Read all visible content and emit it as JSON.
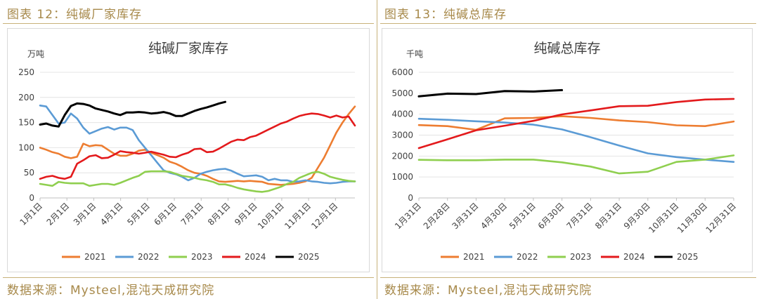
{
  "left_panel": {
    "heading": "图表 12：纯碱厂家库存",
    "source": "数据来源：Mysteel,混沌天成研究院"
  },
  "right_panel": {
    "heading": "图表 13：纯碱总库存",
    "source": "数据来源：Mysteel,混沌天成研究院"
  },
  "chart_data": [
    {
      "type": "line",
      "title": "纯碱厂家库存",
      "ylabel": "万吨",
      "xlabel": "",
      "ylim": [
        0,
        250
      ],
      "yticks": [
        0,
        50,
        100,
        150,
        200,
        250
      ],
      "x_ticks": [
        "1月1日",
        "2月1日",
        "3月1日",
        "4月1日",
        "5月1日",
        "6月1日",
        "7月1日",
        "8月1日",
        "9月1日",
        "10月1日",
        "11月1日",
        "12月1日"
      ],
      "x_domain_weeks": 52,
      "grid": true,
      "legend": "bottom",
      "series": [
        {
          "name": "2021",
          "color": "#ed7d31",
          "x": [
            0,
            1,
            2,
            3,
            4,
            5,
            6,
            7,
            8,
            9,
            10,
            11,
            12,
            13,
            14,
            15,
            16,
            17,
            18,
            19,
            20,
            21,
            22,
            23,
            24,
            25,
            26,
            27,
            28,
            29,
            30,
            31,
            32,
            33,
            34,
            35,
            36,
            37,
            38,
            39,
            40,
            41,
            42,
            43,
            44,
            45,
            46,
            47,
            48,
            49,
            50,
            51
          ],
          "values": [
            100,
            96,
            91,
            88,
            82,
            79,
            82,
            108,
            103,
            105,
            104,
            96,
            88,
            84,
            84,
            88,
            94,
            96,
            90,
            85,
            80,
            72,
            68,
            62,
            55,
            50,
            48,
            44,
            38,
            33,
            32,
            33,
            34,
            33,
            34,
            33,
            32,
            28,
            27,
            26,
            27,
            28,
            30,
            33,
            40,
            60,
            80,
            105,
            130,
            150,
            167,
            182
          ]
        },
        {
          "name": "2022",
          "color": "#5b9bd5",
          "x": [
            0,
            1,
            2,
            3,
            4,
            5,
            6,
            7,
            8,
            9,
            10,
            11,
            12,
            13,
            14,
            15,
            16,
            17,
            18,
            19,
            20,
            21,
            22,
            23,
            24,
            25,
            26,
            27,
            28,
            29,
            30,
            31,
            32,
            33,
            34,
            35,
            36,
            37,
            38,
            39,
            40,
            41,
            42,
            43,
            44,
            45,
            46,
            47,
            48,
            49,
            50,
            51
          ],
          "values": [
            184,
            182,
            165,
            148,
            150,
            168,
            158,
            140,
            128,
            133,
            138,
            141,
            136,
            140,
            140,
            135,
            115,
            100,
            85,
            70,
            55,
            50,
            47,
            42,
            35,
            40,
            48,
            52,
            55,
            57,
            58,
            54,
            48,
            43,
            44,
            45,
            42,
            35,
            38,
            35,
            35,
            32,
            33,
            35,
            33,
            32,
            30,
            29,
            30,
            32,
            33,
            33
          ]
        },
        {
          "name": "2023",
          "color": "#8fcf4f",
          "x": [
            0,
            1,
            2,
            3,
            4,
            5,
            6,
            7,
            8,
            9,
            10,
            11,
            12,
            13,
            14,
            15,
            16,
            17,
            18,
            19,
            20,
            21,
            22,
            23,
            24,
            25,
            26,
            27,
            28,
            29,
            30,
            31,
            32,
            33,
            34,
            35,
            36,
            37,
            38,
            39,
            40,
            41,
            42,
            43,
            44,
            45,
            46,
            47,
            48,
            49,
            50,
            51
          ],
          "values": [
            28,
            26,
            24,
            32,
            30,
            29,
            29,
            29,
            24,
            26,
            28,
            28,
            26,
            30,
            35,
            40,
            44,
            52,
            53,
            53,
            53,
            52,
            48,
            44,
            42,
            40,
            37,
            35,
            32,
            27,
            27,
            24,
            20,
            17,
            15,
            13,
            12,
            14,
            18,
            22,
            28,
            32,
            40,
            45,
            50,
            52,
            48,
            42,
            39,
            36,
            34,
            33
          ]
        },
        {
          "name": "2024",
          "color": "#e31a1c",
          "x": [
            0,
            1,
            2,
            3,
            4,
            5,
            6,
            7,
            8,
            9,
            10,
            11,
            12,
            13,
            14,
            15,
            16,
            17,
            18,
            19,
            20,
            21,
            22,
            23,
            24,
            25,
            26,
            27,
            28,
            29,
            30,
            31,
            32,
            33,
            34,
            35,
            36,
            37,
            38,
            39,
            40,
            41,
            42,
            43,
            44,
            45,
            46,
            47,
            48,
            49,
            50,
            51
          ],
          "values": [
            38,
            42,
            44,
            40,
            38,
            42,
            68,
            75,
            83,
            85,
            79,
            80,
            86,
            93,
            91,
            90,
            88,
            90,
            92,
            89,
            86,
            82,
            81,
            86,
            90,
            97,
            98,
            91,
            92,
            98,
            105,
            112,
            116,
            115,
            121,
            124,
            130,
            136,
            142,
            148,
            152,
            158,
            163,
            166,
            168,
            167,
            164,
            160,
            164,
            160,
            162,
            144
          ]
        },
        {
          "name": "2025",
          "color": "#000000",
          "x": [
            0,
            1,
            2,
            3,
            4,
            5,
            6,
            7,
            8,
            9,
            10,
            11,
            12,
            13,
            14,
            15,
            16,
            17,
            18,
            19,
            20,
            21,
            22,
            23,
            24,
            25,
            26,
            27,
            28,
            29,
            30
          ],
          "values": [
            146,
            148,
            144,
            142,
            165,
            183,
            188,
            187,
            184,
            178,
            175,
            172,
            168,
            165,
            170,
            170,
            171,
            170,
            168,
            169,
            171,
            168,
            163,
            163,
            168,
            173,
            177,
            180,
            184,
            188,
            191
          ]
        }
      ]
    },
    {
      "type": "line",
      "title": "纯碱总库存",
      "ylabel": "千吨",
      "xlabel": "",
      "ylim": [
        0,
        6000
      ],
      "yticks": [
        0,
        1000,
        2000,
        3000,
        4000,
        5000,
        6000
      ],
      "x_ticks": [
        "1月31日",
        "2月28日",
        "3月31日",
        "4月30日",
        "5月31日",
        "6月30日",
        "7月31日",
        "8月31日",
        "9月30日",
        "10月31日",
        "11月30日",
        "12月31日"
      ],
      "grid": true,
      "legend": "bottom",
      "series": [
        {
          "name": "2021",
          "color": "#ed7d31",
          "x": [
            0,
            1,
            2,
            3,
            4,
            5,
            6,
            7,
            8,
            9,
            10,
            11
          ],
          "values": [
            3480,
            3430,
            3250,
            3800,
            3820,
            3900,
            3820,
            3700,
            3620,
            3470,
            3430,
            3650
          ]
        },
        {
          "name": "2022",
          "color": "#5b9bd5",
          "x": [
            0,
            1,
            2,
            3,
            4,
            5,
            6,
            7,
            8,
            9,
            10,
            11
          ],
          "values": [
            3780,
            3730,
            3660,
            3600,
            3500,
            3270,
            2900,
            2500,
            2130,
            1950,
            1830,
            1720
          ]
        },
        {
          "name": "2023",
          "color": "#8fcf4f",
          "x": [
            0,
            1,
            2,
            3,
            4,
            5,
            6,
            7,
            8,
            9,
            10,
            11
          ],
          "values": [
            1820,
            1800,
            1800,
            1830,
            1830,
            1700,
            1500,
            1170,
            1250,
            1720,
            1830,
            2030
          ]
        },
        {
          "name": "2024",
          "color": "#e31a1c",
          "x": [
            0,
            1,
            2,
            3,
            4,
            5,
            6,
            7,
            8,
            9,
            10,
            11
          ],
          "values": [
            2380,
            2800,
            3230,
            3450,
            3680,
            3990,
            4180,
            4380,
            4400,
            4580,
            4700,
            4730
          ]
        },
        {
          "name": "2025",
          "color": "#000000",
          "x": [
            0,
            1,
            2,
            3,
            4,
            5
          ],
          "values": [
            4850,
            4980,
            4960,
            5100,
            5080,
            5150
          ]
        }
      ]
    }
  ]
}
